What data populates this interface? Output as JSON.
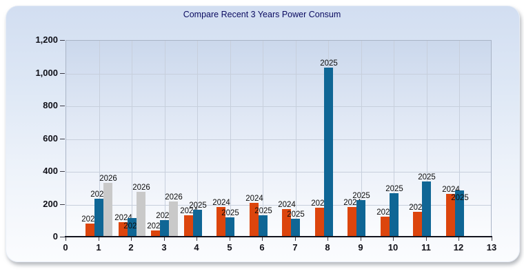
{
  "window": {
    "title": "Compare Recent 3 Years Power Consum"
  },
  "colors": {
    "bar_2024": "#DC450D",
    "bar_2025": "#0F6695",
    "bar_2026": "#C9C9C9",
    "title_text": "#0A0A60",
    "card_background_top": "#D2DEF1",
    "plot_background_top": "#CBD8EC"
  },
  "chart_data": {
    "type": "bar",
    "title": "Compare Recent 3 Years Power Consum",
    "xlabel": "",
    "ylabel": "",
    "xlim": [
      0,
      13
    ],
    "ylim": [
      0,
      1200
    ],
    "grid": true,
    "legend_position": "none - each bar labeled with its year above the bar",
    "x_tick_labels": [
      "0",
      "1",
      "2",
      "3",
      "4",
      "5",
      "6",
      "7",
      "8",
      "9",
      "10",
      "11",
      "12",
      "13"
    ],
    "y_tick_labels": [
      "0",
      "200",
      "400",
      "600",
      "800",
      "1,000",
      "1,200"
    ],
    "categories": [
      "1",
      "2",
      "3",
      "4",
      "5",
      "6",
      "7",
      "8",
      "9",
      "10",
      "11",
      "12"
    ],
    "series": [
      {
        "name": "2024",
        "color": "#DC450D",
        "values": [
          80,
          88,
          38,
          132,
          180,
          205,
          167,
          176,
          181,
          122,
          152,
          260
        ]
      },
      {
        "name": "2025",
        "color": "#0F6695",
        "values": [
          232,
          113,
          99,
          165,
          118,
          131,
          108,
          1030,
          223,
          265,
          338,
          282
        ]
      },
      {
        "name": "2026",
        "color": "#C9C9C9",
        "values": [
          330,
          272,
          216,
          null,
          null,
          null,
          null,
          null,
          null,
          null,
          null,
          null
        ]
      }
    ]
  }
}
